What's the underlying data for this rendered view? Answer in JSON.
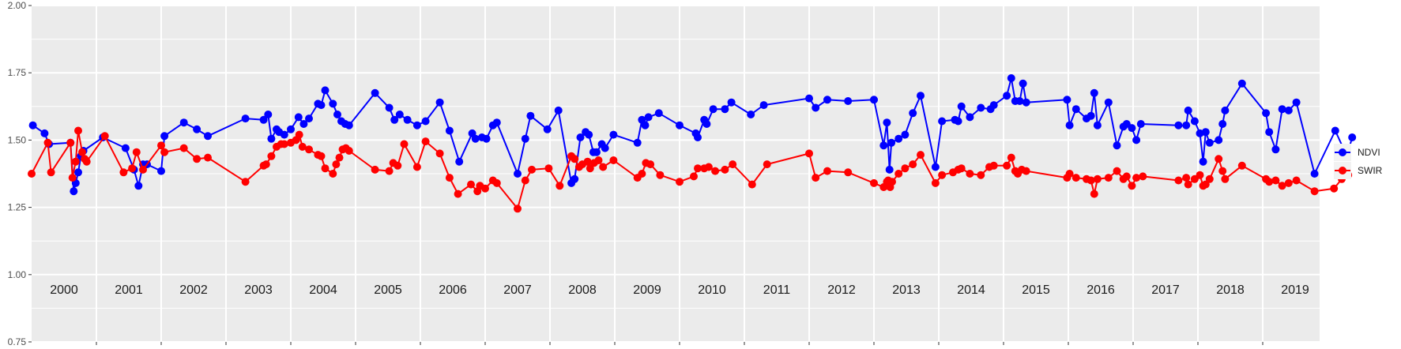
{
  "chart_data": {
    "type": "line",
    "title": "",
    "xlabel": "",
    "ylabel": "",
    "xlim": [
      2000.0,
      2019.95
    ],
    "ylim": [
      0.75,
      2.0
    ],
    "yticks": [
      "0.75",
      "1.00",
      "1.25",
      "1.50",
      "1.75",
      "2.00"
    ],
    "year_labels": [
      "2000",
      "2001",
      "2002",
      "2003",
      "2004",
      "2005",
      "2006",
      "2007",
      "2008",
      "2009",
      "2010",
      "2011",
      "2012",
      "2013",
      "2014",
      "2015",
      "2016",
      "2017",
      "2018",
      "2019"
    ],
    "grid": true,
    "legend_position": "right",
    "series": [
      {
        "name": "NDVI",
        "color": "#0000ff",
        "points": [
          [
            2000.02,
            1.555
          ],
          [
            2000.2,
            1.525
          ],
          [
            2000.27,
            1.485
          ],
          [
            2000.6,
            1.49
          ],
          [
            2000.65,
            1.31
          ],
          [
            2000.68,
            1.34
          ],
          [
            2000.72,
            1.38
          ],
          [
            2000.76,
            1.44
          ],
          [
            2000.8,
            1.46
          ],
          [
            2001.1,
            1.51
          ],
          [
            2001.45,
            1.47
          ],
          [
            2001.58,
            1.39
          ],
          [
            2001.65,
            1.33
          ],
          [
            2001.72,
            1.41
          ],
          [
            2001.78,
            1.41
          ],
          [
            2002.0,
            1.385
          ],
          [
            2002.05,
            1.515
          ],
          [
            2002.35,
            1.565
          ],
          [
            2002.55,
            1.54
          ],
          [
            2002.72,
            1.515
          ],
          [
            2003.3,
            1.58
          ],
          [
            2003.58,
            1.575
          ],
          [
            2003.65,
            1.595
          ],
          [
            2003.7,
            1.505
          ],
          [
            2003.78,
            1.54
          ],
          [
            2003.82,
            1.53
          ],
          [
            2003.9,
            1.52
          ],
          [
            2004.0,
            1.54
          ],
          [
            2004.12,
            1.585
          ],
          [
            2004.2,
            1.56
          ],
          [
            2004.28,
            1.58
          ],
          [
            2004.42,
            1.635
          ],
          [
            2004.47,
            1.63
          ],
          [
            2004.53,
            1.685
          ],
          [
            2004.65,
            1.635
          ],
          [
            2004.72,
            1.595
          ],
          [
            2004.78,
            1.57
          ],
          [
            2004.84,
            1.56
          ],
          [
            2004.9,
            1.555
          ],
          [
            2005.3,
            1.675
          ],
          [
            2005.52,
            1.62
          ],
          [
            2005.6,
            1.575
          ],
          [
            2005.68,
            1.595
          ],
          [
            2005.8,
            1.575
          ],
          [
            2005.95,
            1.555
          ],
          [
            2006.08,
            1.57
          ],
          [
            2006.3,
            1.64
          ],
          [
            2006.45,
            1.535
          ],
          [
            2006.6,
            1.42
          ],
          [
            2006.8,
            1.525
          ],
          [
            2006.85,
            1.505
          ],
          [
            2006.95,
            1.51
          ],
          [
            2007.02,
            1.505
          ],
          [
            2007.12,
            1.555
          ],
          [
            2007.18,
            1.565
          ],
          [
            2007.5,
            1.375
          ],
          [
            2007.62,
            1.505
          ],
          [
            2007.7,
            1.59
          ],
          [
            2007.96,
            1.54
          ],
          [
            2008.13,
            1.61
          ],
          [
            2008.33,
            1.34
          ],
          [
            2008.38,
            1.355
          ],
          [
            2008.47,
            1.51
          ],
          [
            2008.55,
            1.53
          ],
          [
            2008.6,
            1.52
          ],
          [
            2008.67,
            1.455
          ],
          [
            2008.72,
            1.455
          ],
          [
            2008.8,
            1.485
          ],
          [
            2008.85,
            1.47
          ],
          [
            2008.98,
            1.52
          ],
          [
            2009.35,
            1.49
          ],
          [
            2009.42,
            1.575
          ],
          [
            2009.47,
            1.555
          ],
          [
            2009.52,
            1.585
          ],
          [
            2009.68,
            1.6
          ],
          [
            2010.0,
            1.555
          ],
          [
            2010.25,
            1.525
          ],
          [
            2010.28,
            1.51
          ],
          [
            2010.38,
            1.575
          ],
          [
            2010.42,
            1.56
          ],
          [
            2010.52,
            1.615
          ],
          [
            2010.7,
            1.615
          ],
          [
            2010.8,
            1.64
          ],
          [
            2011.1,
            1.595
          ],
          [
            2011.3,
            1.63
          ],
          [
            2012.0,
            1.655
          ],
          [
            2012.1,
            1.62
          ],
          [
            2012.28,
            1.65
          ],
          [
            2012.6,
            1.645
          ],
          [
            2013.0,
            1.65
          ],
          [
            2013.15,
            1.48
          ],
          [
            2013.2,
            1.565
          ],
          [
            2013.24,
            1.39
          ],
          [
            2013.27,
            1.49
          ],
          [
            2013.38,
            1.505
          ],
          [
            2013.48,
            1.52
          ],
          [
            2013.6,
            1.6
          ],
          [
            2013.72,
            1.665
          ],
          [
            2013.95,
            1.4
          ],
          [
            2014.05,
            1.57
          ],
          [
            2014.25,
            1.575
          ],
          [
            2014.3,
            1.57
          ],
          [
            2014.35,
            1.625
          ],
          [
            2014.48,
            1.585
          ],
          [
            2014.65,
            1.62
          ],
          [
            2014.8,
            1.615
          ],
          [
            2014.85,
            1.63
          ],
          [
            2015.05,
            1.665
          ],
          [
            2015.12,
            1.73
          ],
          [
            2015.18,
            1.645
          ],
          [
            2015.25,
            1.645
          ],
          [
            2015.3,
            1.71
          ],
          [
            2015.35,
            1.64
          ],
          [
            2015.98,
            1.65
          ],
          [
            2016.02,
            1.555
          ],
          [
            2016.12,
            1.615
          ],
          [
            2016.28,
            1.58
          ],
          [
            2016.35,
            1.59
          ],
          [
            2016.4,
            1.675
          ],
          [
            2016.45,
            1.555
          ],
          [
            2016.62,
            1.64
          ],
          [
            2016.75,
            1.48
          ],
          [
            2016.85,
            1.55
          ],
          [
            2016.9,
            1.56
          ],
          [
            2016.98,
            1.545
          ],
          [
            2017.05,
            1.5
          ],
          [
            2017.12,
            1.56
          ],
          [
            2017.7,
            1.555
          ],
          [
            2017.82,
            1.555
          ],
          [
            2017.85,
            1.61
          ],
          [
            2017.95,
            1.57
          ],
          [
            2018.03,
            1.525
          ],
          [
            2018.08,
            1.42
          ],
          [
            2018.12,
            1.53
          ],
          [
            2018.18,
            1.49
          ],
          [
            2018.32,
            1.5
          ],
          [
            2018.38,
            1.56
          ],
          [
            2018.42,
            1.61
          ],
          [
            2018.68,
            1.71
          ],
          [
            2019.05,
            1.6
          ],
          [
            2019.1,
            1.53
          ],
          [
            2019.2,
            1.465
          ],
          [
            2019.3,
            1.615
          ],
          [
            2019.4,
            1.61
          ],
          [
            2019.52,
            1.64
          ],
          [
            2019.8,
            1.375
          ],
          [
            2020.12,
            1.535
          ],
          [
            2020.3,
            1.44
          ],
          [
            2020.38,
            1.51
          ]
        ]
      },
      {
        "name": "SWIR",
        "color": "#ff0000",
        "points": [
          [
            2000.0,
            1.375
          ],
          [
            2000.25,
            1.49
          ],
          [
            2000.3,
            1.38
          ],
          [
            2000.6,
            1.49
          ],
          [
            2000.63,
            1.36
          ],
          [
            2000.68,
            1.42
          ],
          [
            2000.72,
            1.535
          ],
          [
            2000.78,
            1.455
          ],
          [
            2000.82,
            1.43
          ],
          [
            2000.85,
            1.42
          ],
          [
            2001.13,
            1.515
          ],
          [
            2001.42,
            1.38
          ],
          [
            2001.55,
            1.395
          ],
          [
            2001.62,
            1.455
          ],
          [
            2001.72,
            1.39
          ],
          [
            2002.0,
            1.48
          ],
          [
            2002.05,
            1.455
          ],
          [
            2002.35,
            1.47
          ],
          [
            2002.55,
            1.43
          ],
          [
            2002.72,
            1.435
          ],
          [
            2003.3,
            1.345
          ],
          [
            2003.58,
            1.405
          ],
          [
            2003.62,
            1.41
          ],
          [
            2003.7,
            1.44
          ],
          [
            2003.78,
            1.475
          ],
          [
            2003.85,
            1.485
          ],
          [
            2003.9,
            1.485
          ],
          [
            2004.0,
            1.49
          ],
          [
            2004.08,
            1.5
          ],
          [
            2004.13,
            1.52
          ],
          [
            2004.18,
            1.475
          ],
          [
            2004.28,
            1.465
          ],
          [
            2004.42,
            1.445
          ],
          [
            2004.47,
            1.44
          ],
          [
            2004.53,
            1.395
          ],
          [
            2004.65,
            1.375
          ],
          [
            2004.7,
            1.41
          ],
          [
            2004.75,
            1.435
          ],
          [
            2004.8,
            1.465
          ],
          [
            2004.85,
            1.47
          ],
          [
            2004.9,
            1.46
          ],
          [
            2005.3,
            1.39
          ],
          [
            2005.52,
            1.385
          ],
          [
            2005.58,
            1.415
          ],
          [
            2005.65,
            1.405
          ],
          [
            2005.75,
            1.485
          ],
          [
            2005.95,
            1.4
          ],
          [
            2006.08,
            1.495
          ],
          [
            2006.3,
            1.45
          ],
          [
            2006.45,
            1.36
          ],
          [
            2006.58,
            1.3
          ],
          [
            2006.78,
            1.335
          ],
          [
            2006.88,
            1.31
          ],
          [
            2006.92,
            1.33
          ],
          [
            2007.0,
            1.32
          ],
          [
            2007.12,
            1.35
          ],
          [
            2007.18,
            1.34
          ],
          [
            2007.5,
            1.245
          ],
          [
            2007.62,
            1.35
          ],
          [
            2007.72,
            1.39
          ],
          [
            2007.98,
            1.395
          ],
          [
            2008.15,
            1.33
          ],
          [
            2008.33,
            1.44
          ],
          [
            2008.38,
            1.43
          ],
          [
            2008.45,
            1.4
          ],
          [
            2008.5,
            1.41
          ],
          [
            2008.58,
            1.42
          ],
          [
            2008.62,
            1.395
          ],
          [
            2008.68,
            1.415
          ],
          [
            2008.75,
            1.425
          ],
          [
            2008.82,
            1.4
          ],
          [
            2008.98,
            1.425
          ],
          [
            2009.35,
            1.36
          ],
          [
            2009.42,
            1.375
          ],
          [
            2009.48,
            1.415
          ],
          [
            2009.55,
            1.41
          ],
          [
            2009.7,
            1.37
          ],
          [
            2010.0,
            1.345
          ],
          [
            2010.22,
            1.365
          ],
          [
            2010.28,
            1.395
          ],
          [
            2010.38,
            1.395
          ],
          [
            2010.45,
            1.4
          ],
          [
            2010.55,
            1.385
          ],
          [
            2010.7,
            1.39
          ],
          [
            2010.82,
            1.41
          ],
          [
            2011.12,
            1.335
          ],
          [
            2011.35,
            1.41
          ],
          [
            2012.0,
            1.45
          ],
          [
            2012.1,
            1.36
          ],
          [
            2012.28,
            1.385
          ],
          [
            2012.6,
            1.38
          ],
          [
            2013.0,
            1.34
          ],
          [
            2013.15,
            1.325
          ],
          [
            2013.2,
            1.345
          ],
          [
            2013.22,
            1.35
          ],
          [
            2013.25,
            1.325
          ],
          [
            2013.28,
            1.345
          ],
          [
            2013.38,
            1.375
          ],
          [
            2013.48,
            1.395
          ],
          [
            2013.6,
            1.41
          ],
          [
            2013.72,
            1.445
          ],
          [
            2013.95,
            1.34
          ],
          [
            2014.05,
            1.37
          ],
          [
            2014.22,
            1.38
          ],
          [
            2014.3,
            1.39
          ],
          [
            2014.35,
            1.395
          ],
          [
            2014.48,
            1.375
          ],
          [
            2014.65,
            1.37
          ],
          [
            2014.78,
            1.4
          ],
          [
            2014.85,
            1.405
          ],
          [
            2015.05,
            1.405
          ],
          [
            2015.12,
            1.435
          ],
          [
            2015.18,
            1.385
          ],
          [
            2015.22,
            1.375
          ],
          [
            2015.28,
            1.39
          ],
          [
            2015.35,
            1.385
          ],
          [
            2015.98,
            1.36
          ],
          [
            2016.02,
            1.375
          ],
          [
            2016.12,
            1.36
          ],
          [
            2016.28,
            1.355
          ],
          [
            2016.35,
            1.35
          ],
          [
            2016.4,
            1.3
          ],
          [
            2016.45,
            1.355
          ],
          [
            2016.62,
            1.36
          ],
          [
            2016.75,
            1.385
          ],
          [
            2016.85,
            1.355
          ],
          [
            2016.9,
            1.365
          ],
          [
            2016.98,
            1.33
          ],
          [
            2017.05,
            1.36
          ],
          [
            2017.15,
            1.365
          ],
          [
            2017.7,
            1.35
          ],
          [
            2017.82,
            1.36
          ],
          [
            2017.85,
            1.335
          ],
          [
            2017.95,
            1.355
          ],
          [
            2018.03,
            1.37
          ],
          [
            2018.08,
            1.33
          ],
          [
            2018.12,
            1.335
          ],
          [
            2018.18,
            1.355
          ],
          [
            2018.32,
            1.43
          ],
          [
            2018.38,
            1.385
          ],
          [
            2018.42,
            1.355
          ],
          [
            2018.68,
            1.405
          ],
          [
            2019.05,
            1.355
          ],
          [
            2019.1,
            1.345
          ],
          [
            2019.2,
            1.35
          ],
          [
            2019.3,
            1.33
          ],
          [
            2019.4,
            1.34
          ],
          [
            2019.52,
            1.35
          ],
          [
            2019.8,
            1.31
          ],
          [
            2020.1,
            1.32
          ],
          [
            2020.22,
            1.355
          ],
          [
            2020.32,
            1.37
          ]
        ]
      }
    ]
  }
}
